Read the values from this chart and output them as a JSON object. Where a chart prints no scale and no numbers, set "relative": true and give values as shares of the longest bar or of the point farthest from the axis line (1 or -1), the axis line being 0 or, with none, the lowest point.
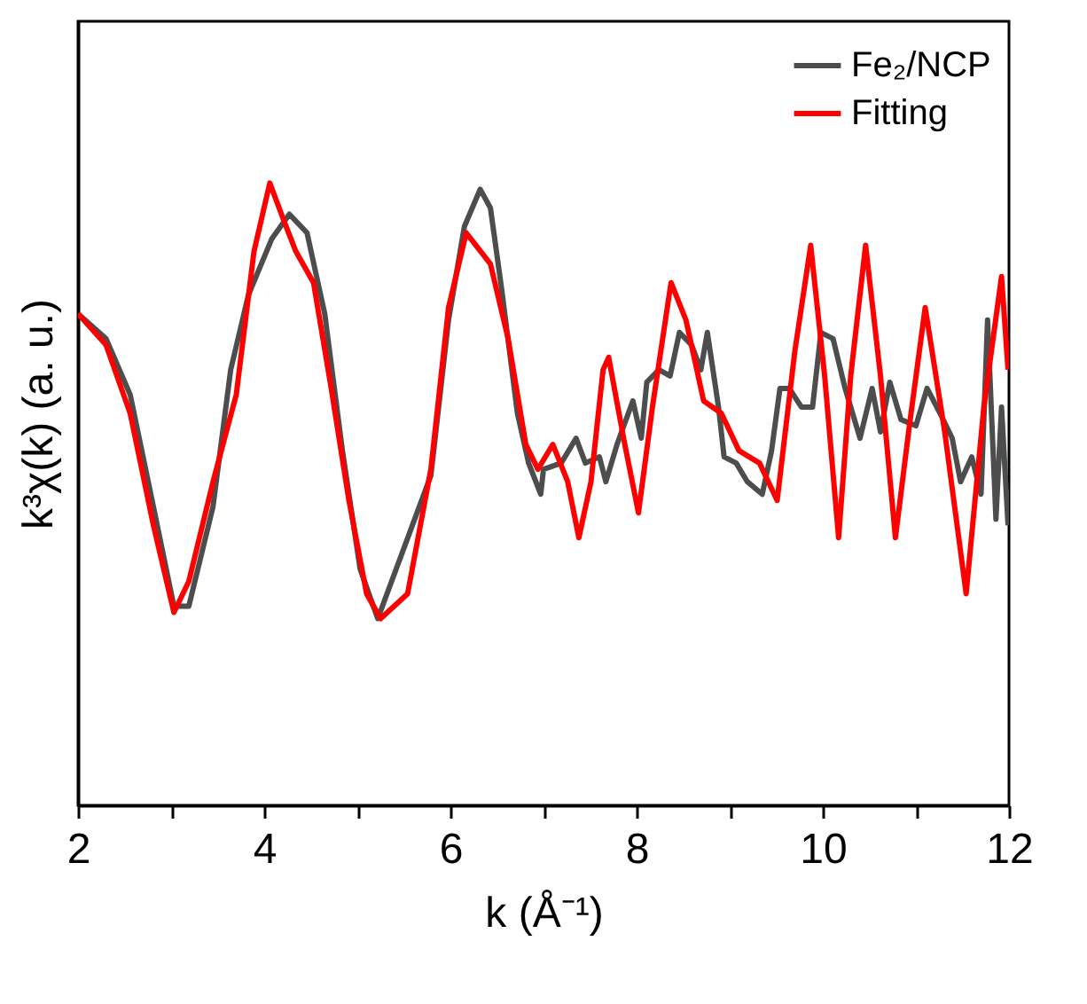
{
  "chart_data": {
    "type": "line",
    "xlabel": "k (Å⁻¹)",
    "ylabel": "k³χ(k) (a. u.)",
    "relative": true,
    "legend": "top right",
    "xlim": [
      2,
      12
    ],
    "xticks": [
      2,
      {
        "value": 3,
        "label": null
      },
      4,
      {
        "value": 5,
        "label": null
      },
      6,
      {
        "value": 7,
        "label": null
      },
      8,
      {
        "value": 9,
        "label": null
      },
      10,
      {
        "value": 11,
        "label": null
      },
      12
    ],
    "series": [
      {
        "name": "Fe₂/NCP",
        "color": "#4d4d4d",
        "x": [
          2.0,
          2.3,
          2.56,
          2.81,
          3.03,
          3.19,
          3.45,
          3.64,
          3.83,
          4.08,
          4.27,
          4.46,
          4.65,
          4.84,
          5.03,
          5.22,
          5.79,
          5.98,
          6.15,
          6.32,
          6.43,
          6.55,
          6.72,
          6.84,
          6.97,
          7.0,
          7.19,
          7.35,
          7.45,
          7.6,
          7.67,
          7.79,
          7.96,
          8.05,
          8.11,
          8.24,
          8.36,
          8.46,
          8.59,
          8.69,
          8.76,
          8.88,
          8.94,
          9.07,
          9.19,
          9.35,
          9.45,
          9.54,
          9.64,
          9.77,
          9.89,
          9.98,
          10.11,
          10.24,
          10.4,
          10.53,
          10.62,
          10.72,
          10.84,
          11.0,
          11.12,
          11.26,
          11.39,
          11.48,
          11.6,
          11.7,
          11.77,
          11.86,
          11.92,
          11.99
        ],
        "values": [
          0.79,
          0.75,
          0.66,
          0.48,
          0.32,
          0.32,
          0.48,
          0.7,
          0.82,
          0.91,
          0.95,
          0.92,
          0.79,
          0.57,
          0.38,
          0.3,
          0.53,
          0.78,
          0.93,
          0.99,
          0.96,
          0.83,
          0.63,
          0.55,
          0.5,
          0.54,
          0.55,
          0.59,
          0.55,
          0.56,
          0.52,
          0.58,
          0.65,
          0.59,
          0.68,
          0.7,
          0.69,
          0.76,
          0.74,
          0.7,
          0.76,
          0.64,
          0.56,
          0.55,
          0.52,
          0.5,
          0.57,
          0.67,
          0.67,
          0.64,
          0.64,
          0.76,
          0.75,
          0.67,
          0.59,
          0.67,
          0.6,
          0.68,
          0.62,
          0.61,
          0.67,
          0.63,
          0.59,
          0.52,
          0.56,
          0.5,
          0.78,
          0.46,
          0.64,
          0.45
        ]
      },
      {
        "name": "Fitting",
        "color": "#ff0000",
        "x": [
          2.0,
          2.3,
          2.56,
          2.81,
          3.03,
          3.19,
          3.45,
          3.7,
          3.89,
          4.06,
          4.21,
          4.34,
          4.53,
          4.72,
          4.91,
          5.1,
          5.25,
          5.54,
          5.79,
          5.98,
          6.17,
          6.43,
          6.62,
          6.81,
          6.94,
          7.1,
          7.26,
          7.38,
          7.51,
          7.64,
          7.7,
          7.86,
          8.02,
          8.17,
          8.37,
          8.53,
          8.72,
          8.91,
          9.1,
          9.32,
          9.51,
          9.7,
          9.87,
          10.02,
          10.17,
          10.3,
          10.46,
          10.62,
          10.78,
          10.93,
          11.1,
          11.31,
          11.54,
          11.73,
          11.92,
          11.99
        ],
        "values": [
          0.79,
          0.74,
          0.63,
          0.45,
          0.31,
          0.36,
          0.52,
          0.66,
          0.89,
          1.0,
          0.94,
          0.89,
          0.84,
          0.67,
          0.49,
          0.34,
          0.3,
          0.34,
          0.54,
          0.8,
          0.92,
          0.87,
          0.75,
          0.58,
          0.54,
          0.58,
          0.52,
          0.43,
          0.52,
          0.7,
          0.72,
          0.59,
          0.47,
          0.64,
          0.84,
          0.78,
          0.65,
          0.63,
          0.57,
          0.55,
          0.49,
          0.73,
          0.9,
          0.69,
          0.43,
          0.69,
          0.9,
          0.69,
          0.43,
          0.61,
          0.8,
          0.6,
          0.34,
          0.64,
          0.85,
          0.7
        ]
      }
    ]
  }
}
